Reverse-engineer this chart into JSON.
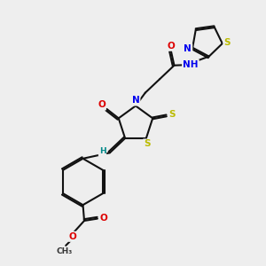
{
  "bg_color": "#eeeeee",
  "bond_color": "#111111",
  "lw": 1.5,
  "dbo": 0.03,
  "fs": 7.5,
  "colors": {
    "O": "#dd0000",
    "N": "#0000ee",
    "S": "#bbbb00",
    "H": "#008888",
    "C": "#111111"
  },
  "figsize": [
    3.0,
    3.0
  ],
  "dpi": 100
}
